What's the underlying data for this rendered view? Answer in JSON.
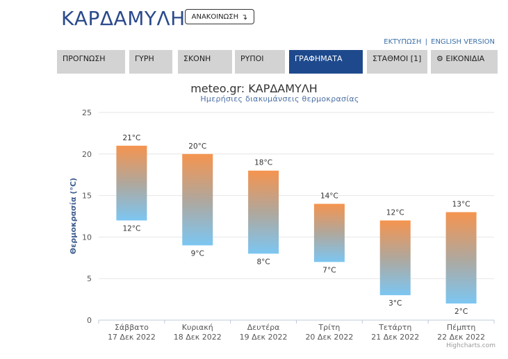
{
  "page": {
    "title": "ΚΑΡΔΑΜΥΛΗ",
    "announce_label": "ΑΝΑΚΟΙΝΩΣΗ",
    "announce_icon": "arrow-down-turn-icon"
  },
  "top_links": {
    "print": "ΕΚΤΥΠΩΣΗ",
    "separator": "|",
    "english": "ENGLISH VERSION"
  },
  "nav": {
    "items": [
      {
        "label": "ΠΡΟΓΝΩΣΗ",
        "active": false
      },
      {
        "label": "ΓΥΡΗ",
        "active": false
      },
      {
        "label": "ΣΚΟΝΗ",
        "active": false
      },
      {
        "label": "ΡΥΠΟΙ",
        "active": false
      },
      {
        "label": "ΓΡΑΦΗΜΑΤΑ",
        "active": true
      },
      {
        "label": "ΣΤΑΘΜΟΙ [1]",
        "active": false
      },
      {
        "label": "ΕΙΚΟΝΙΔΙΑ",
        "active": false,
        "icon": "gear-icon"
      }
    ]
  },
  "colors": {
    "brand_blue": "#1e4a8d",
    "title_blue": "#2b4a8c",
    "bar_top": "#f5944f",
    "bar_bottom": "#7cc6f2"
  },
  "chart_data": {
    "type": "bar",
    "subtype": "columnrange",
    "title": "meteo.gr: ΚΑΡΔΑΜΥΛΗ",
    "subtitle": "Ημερήσιες διακυμάνσεις θερμοκρασίας",
    "ylabel": "Θερμοκρασία (°C)",
    "ylim": [
      0,
      25
    ],
    "yticks": [
      0,
      5,
      10,
      15,
      20,
      25
    ],
    "grid": true,
    "categories": [
      [
        "Σάββατο",
        "17 Δεκ 2022"
      ],
      [
        "Κυριακή",
        "18 Δεκ 2022"
      ],
      [
        "Δευτέρα",
        "19 Δεκ 2022"
      ],
      [
        "Τρίτη",
        "20 Δεκ 2022"
      ],
      [
        "Τετάρτη",
        "21 Δεκ 2022"
      ],
      [
        "Πέμπτη",
        "22 Δεκ 2022"
      ]
    ],
    "series": [
      {
        "low": [
          12,
          9,
          8,
          7,
          3,
          2
        ],
        "high": [
          21,
          20,
          18,
          14,
          12,
          13
        ]
      }
    ],
    "unit_suffix": "°C",
    "credits": "Highcharts.com"
  }
}
